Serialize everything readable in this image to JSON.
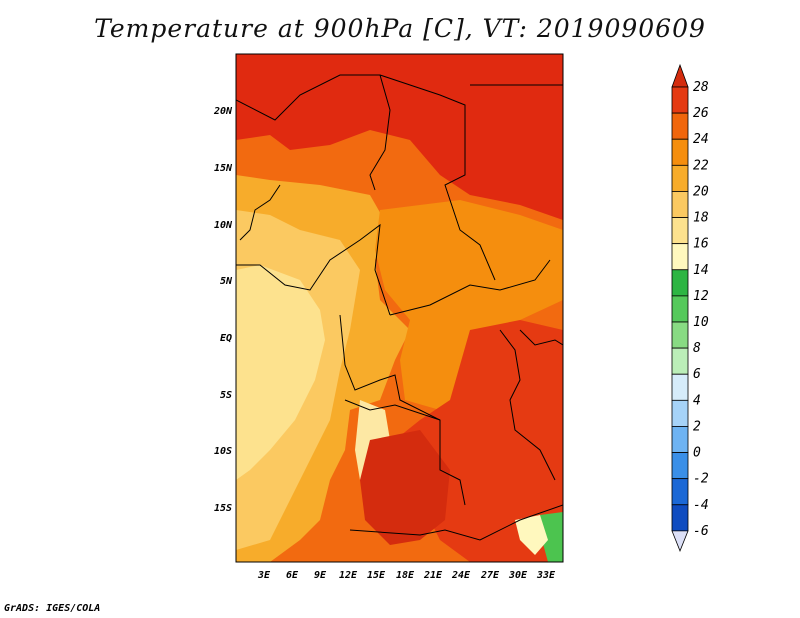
{
  "title": "Temperature at 900hPa [C], VT: 2019090609",
  "credit": "GrADS: IGES/COLA",
  "map": {
    "variable": "Temperature",
    "level": "900hPa",
    "units": "C",
    "valid_time": "2019090609",
    "lat_labels": [
      "20N",
      "15N",
      "10N",
      "5N",
      "EQ",
      "5S",
      "10S",
      "15S"
    ],
    "lon_labels": [
      "3E",
      "6E",
      "9E",
      "12E",
      "15E",
      "18E",
      "21E",
      "24E",
      "27E",
      "30E",
      "33E"
    ]
  },
  "colorbar": {
    "levels": [
      "28",
      "26",
      "24",
      "22",
      "20",
      "18",
      "16",
      "14",
      "12",
      "10",
      "8",
      "6",
      "4",
      "2",
      "0",
      "-2",
      "-4",
      "-6"
    ],
    "colors": [
      "#ffffff",
      "#e53a12",
      "#f0660c",
      "#f58e0e",
      "#f7ac2b",
      "#fbc961",
      "#fde28e",
      "#fff8be",
      "#2db543",
      "#55c95b",
      "#88db83",
      "#bbeeb8",
      "#d6ecfa",
      "#a6d3f8",
      "#6eb3f2",
      "#3a8fe7",
      "#1b68d6",
      "#0f4cc0",
      "#0b3aa7",
      "#07208a"
    ],
    "top_color": "#d42c0e",
    "bottom_color": "#dce0f7"
  },
  "colors": {
    "hot": "#e02a10",
    "warm": "#f26a10",
    "mid": "#f7a02a",
    "mild": "#fbd275",
    "cool": "#fde8a4",
    "green": "#4cc44f"
  }
}
